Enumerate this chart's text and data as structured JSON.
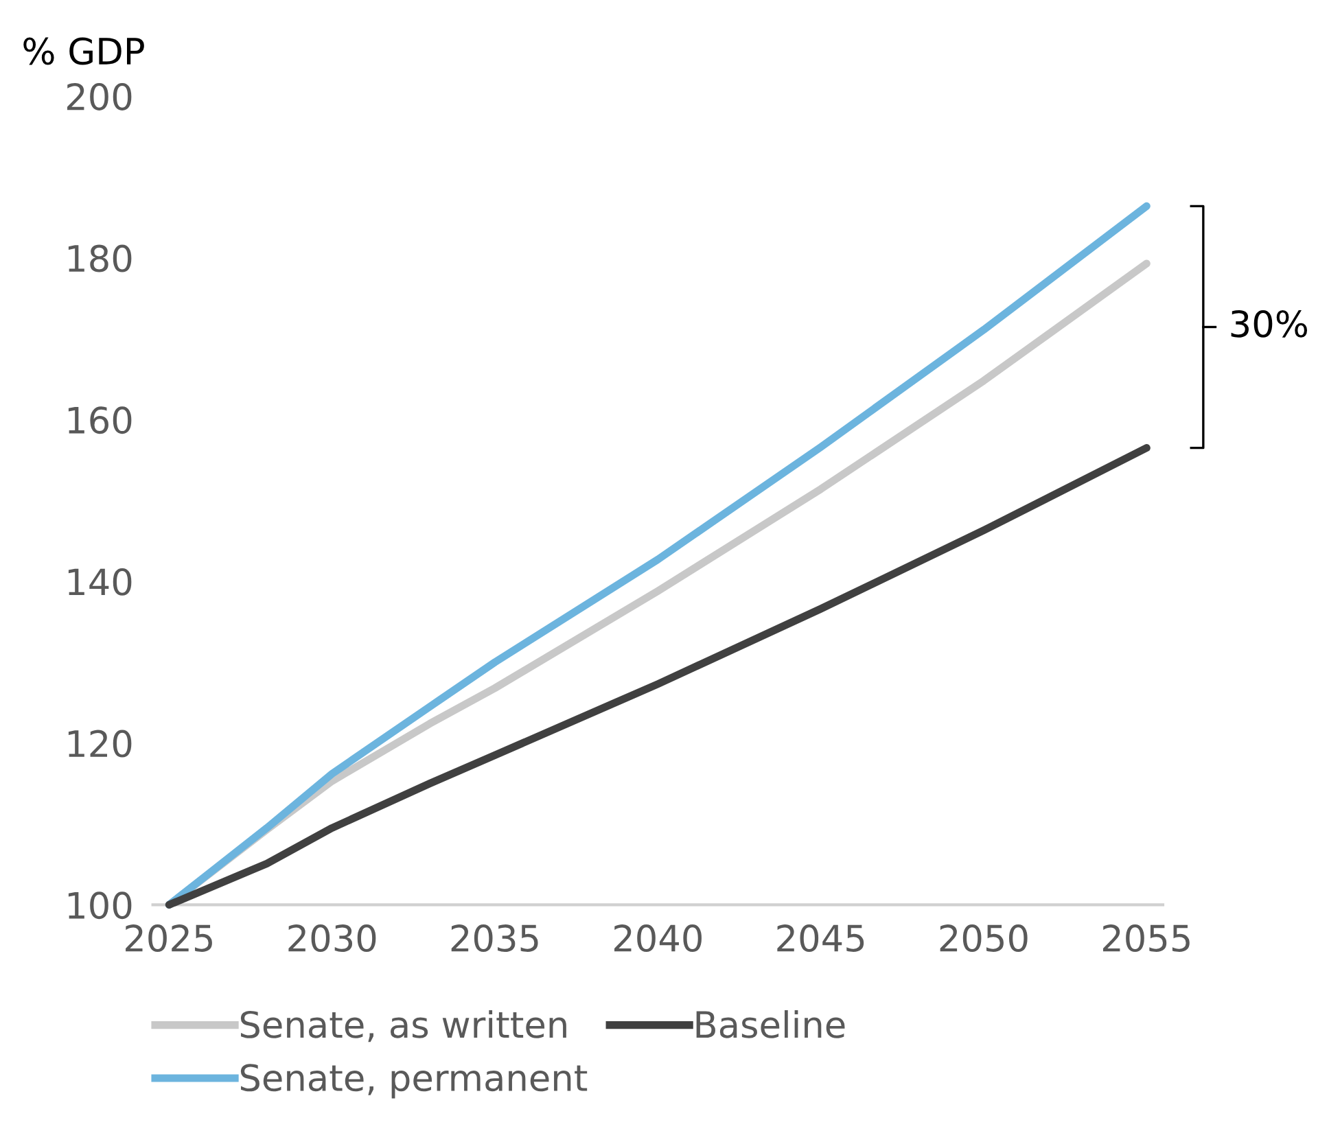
{
  "chart_data": {
    "type": "line",
    "ylabel": "% GDP",
    "x": [
      2025,
      2028,
      2030,
      2033,
      2035,
      2040,
      2045,
      2050,
      2055
    ],
    "series": [
      {
        "name": "Senate, as written",
        "color": "#c8c8c8",
        "values": [
          100,
          109.3,
          115.3,
          122.4,
          126.8,
          138.8,
          151.4,
          164.8,
          179.3
        ]
      },
      {
        "name": "Senate, permanent",
        "color": "#6cb4de",
        "values": [
          100,
          109.5,
          116.2,
          124.5,
          130.0,
          142.7,
          156.6,
          171.1,
          186.4
        ]
      },
      {
        "name": "Baseline",
        "color": "#404040",
        "values": [
          100,
          105.1,
          109.5,
          115.0,
          118.5,
          127.3,
          136.6,
          146.3,
          156.5
        ]
      }
    ],
    "xlim": [
      2024.5,
      2055.5
    ],
    "xticks": [
      2025,
      2030,
      2035,
      2040,
      2045,
      2050,
      2055
    ],
    "ylim": [
      100,
      200
    ],
    "yticks": [
      100,
      120,
      140,
      160,
      180,
      200
    ],
    "grid": false,
    "legend": "bottom",
    "marker": "none",
    "line_style": "solid",
    "annotations": [
      "30%"
    ]
  }
}
